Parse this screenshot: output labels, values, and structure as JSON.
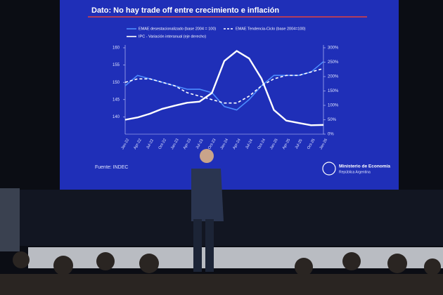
{
  "chart_data": {
    "type": "line",
    "title": "Dato: No hay trade off entre crecimiento e inflación",
    "categories": [
      "Jan-22",
      "Apr-22",
      "Jul-22",
      "Oct-22",
      "Jan-23",
      "Apr-23",
      "Jul-23",
      "Oct-23",
      "Jan-24",
      "Apr-24",
      "Jul-24",
      "Oct-24",
      "Jan-25",
      "Apr-25",
      "Jul-25",
      "Oct-25",
      "Jan-26"
    ],
    "series": [
      {
        "name": "EMAE desestacionalizado (base 2004 = 100)",
        "color": "#4d8dff",
        "dash": false,
        "axis": "y",
        "values": [
          149,
          152,
          151,
          150,
          149,
          148,
          148,
          147,
          143,
          142,
          145,
          149,
          152,
          152,
          152,
          153,
          156
        ]
      },
      {
        "name": "EMAE Tendencia-Ciclo (base 2004=100)",
        "color": "#ffffff",
        "dash": true,
        "axis": "y",
        "values": [
          150,
          151,
          151,
          150,
          149,
          147,
          146,
          145,
          144,
          144,
          146,
          149,
          151,
          152,
          152,
          153,
          154
        ]
      },
      {
        "name": "IPC - Variación interanual (eje derecho)",
        "color": "#ffffff",
        "dash": false,
        "axis": "y2",
        "values": [
          50,
          58,
          71,
          88,
          99,
          109,
          113,
          143,
          254,
          289,
          263,
          193,
          84,
          47,
          39,
          31,
          32
        ]
      }
    ],
    "ylim": [
      135,
      160
    ],
    "yticks": [
      140,
      145,
      150,
      155,
      160
    ],
    "y2lim": [
      0,
      300
    ],
    "y2ticks": [
      {
        "value": 0,
        "label": "0%"
      },
      {
        "value": 50,
        "label": "50%"
      },
      {
        "value": 100,
        "label": "100%"
      },
      {
        "value": 150,
        "label": "150%"
      },
      {
        "value": 200,
        "label": "200%"
      },
      {
        "value": 250,
        "label": "250%"
      },
      {
        "value": 300,
        "label": "300%"
      }
    ]
  },
  "slide": {
    "source": "Fuente: INDEC",
    "ministry": "Ministerio de Economía",
    "country": "República Argentina"
  }
}
